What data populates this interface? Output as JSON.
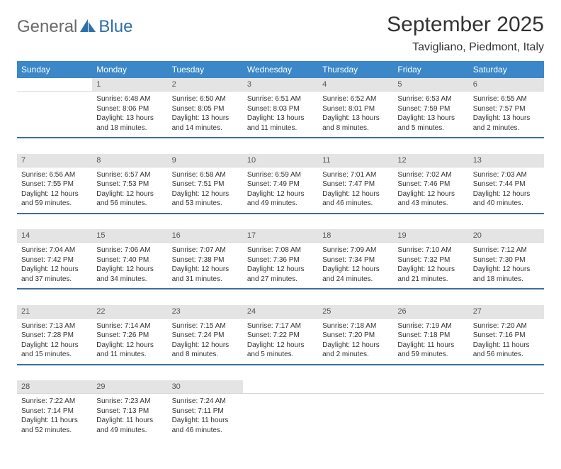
{
  "brand": {
    "part1": "General",
    "part2": "Blue"
  },
  "title": "September 2025",
  "location": "Tavigliano, Piedmont, Italy",
  "colors": {
    "header_bg": "#3b87c8",
    "header_text": "#ffffff",
    "daynum_bg": "#e4e4e4",
    "daynum_text": "#555555",
    "cell_text": "#333333",
    "divider": "#3b6fa0",
    "logo_gray": "#6a6a6a",
    "logo_blue": "#2f6fa8",
    "page_bg": "#ffffff"
  },
  "typography": {
    "title_size": 30,
    "location_size": 16,
    "th_size": 12,
    "daynum_size": 11,
    "cell_size": 10
  },
  "day_headers": [
    "Sunday",
    "Monday",
    "Tuesday",
    "Wednesday",
    "Thursday",
    "Friday",
    "Saturday"
  ],
  "weeks": [
    [
      null,
      {
        "n": "1",
        "sr": "Sunrise: 6:48 AM",
        "ss": "Sunset: 8:06 PM",
        "dl1": "Daylight: 13 hours",
        "dl2": "and 18 minutes."
      },
      {
        "n": "2",
        "sr": "Sunrise: 6:50 AM",
        "ss": "Sunset: 8:05 PM",
        "dl1": "Daylight: 13 hours",
        "dl2": "and 14 minutes."
      },
      {
        "n": "3",
        "sr": "Sunrise: 6:51 AM",
        "ss": "Sunset: 8:03 PM",
        "dl1": "Daylight: 13 hours",
        "dl2": "and 11 minutes."
      },
      {
        "n": "4",
        "sr": "Sunrise: 6:52 AM",
        "ss": "Sunset: 8:01 PM",
        "dl1": "Daylight: 13 hours",
        "dl2": "and 8 minutes."
      },
      {
        "n": "5",
        "sr": "Sunrise: 6:53 AM",
        "ss": "Sunset: 7:59 PM",
        "dl1": "Daylight: 13 hours",
        "dl2": "and 5 minutes."
      },
      {
        "n": "6",
        "sr": "Sunrise: 6:55 AM",
        "ss": "Sunset: 7:57 PM",
        "dl1": "Daylight: 13 hours",
        "dl2": "and 2 minutes."
      }
    ],
    [
      {
        "n": "7",
        "sr": "Sunrise: 6:56 AM",
        "ss": "Sunset: 7:55 PM",
        "dl1": "Daylight: 12 hours",
        "dl2": "and 59 minutes."
      },
      {
        "n": "8",
        "sr": "Sunrise: 6:57 AM",
        "ss": "Sunset: 7:53 PM",
        "dl1": "Daylight: 12 hours",
        "dl2": "and 56 minutes."
      },
      {
        "n": "9",
        "sr": "Sunrise: 6:58 AM",
        "ss": "Sunset: 7:51 PM",
        "dl1": "Daylight: 12 hours",
        "dl2": "and 53 minutes."
      },
      {
        "n": "10",
        "sr": "Sunrise: 6:59 AM",
        "ss": "Sunset: 7:49 PM",
        "dl1": "Daylight: 12 hours",
        "dl2": "and 49 minutes."
      },
      {
        "n": "11",
        "sr": "Sunrise: 7:01 AM",
        "ss": "Sunset: 7:47 PM",
        "dl1": "Daylight: 12 hours",
        "dl2": "and 46 minutes."
      },
      {
        "n": "12",
        "sr": "Sunrise: 7:02 AM",
        "ss": "Sunset: 7:46 PM",
        "dl1": "Daylight: 12 hours",
        "dl2": "and 43 minutes."
      },
      {
        "n": "13",
        "sr": "Sunrise: 7:03 AM",
        "ss": "Sunset: 7:44 PM",
        "dl1": "Daylight: 12 hours",
        "dl2": "and 40 minutes."
      }
    ],
    [
      {
        "n": "14",
        "sr": "Sunrise: 7:04 AM",
        "ss": "Sunset: 7:42 PM",
        "dl1": "Daylight: 12 hours",
        "dl2": "and 37 minutes."
      },
      {
        "n": "15",
        "sr": "Sunrise: 7:06 AM",
        "ss": "Sunset: 7:40 PM",
        "dl1": "Daylight: 12 hours",
        "dl2": "and 34 minutes."
      },
      {
        "n": "16",
        "sr": "Sunrise: 7:07 AM",
        "ss": "Sunset: 7:38 PM",
        "dl1": "Daylight: 12 hours",
        "dl2": "and 31 minutes."
      },
      {
        "n": "17",
        "sr": "Sunrise: 7:08 AM",
        "ss": "Sunset: 7:36 PM",
        "dl1": "Daylight: 12 hours",
        "dl2": "and 27 minutes."
      },
      {
        "n": "18",
        "sr": "Sunrise: 7:09 AM",
        "ss": "Sunset: 7:34 PM",
        "dl1": "Daylight: 12 hours",
        "dl2": "and 24 minutes."
      },
      {
        "n": "19",
        "sr": "Sunrise: 7:10 AM",
        "ss": "Sunset: 7:32 PM",
        "dl1": "Daylight: 12 hours",
        "dl2": "and 21 minutes."
      },
      {
        "n": "20",
        "sr": "Sunrise: 7:12 AM",
        "ss": "Sunset: 7:30 PM",
        "dl1": "Daylight: 12 hours",
        "dl2": "and 18 minutes."
      }
    ],
    [
      {
        "n": "21",
        "sr": "Sunrise: 7:13 AM",
        "ss": "Sunset: 7:28 PM",
        "dl1": "Daylight: 12 hours",
        "dl2": "and 15 minutes."
      },
      {
        "n": "22",
        "sr": "Sunrise: 7:14 AM",
        "ss": "Sunset: 7:26 PM",
        "dl1": "Daylight: 12 hours",
        "dl2": "and 11 minutes."
      },
      {
        "n": "23",
        "sr": "Sunrise: 7:15 AM",
        "ss": "Sunset: 7:24 PM",
        "dl1": "Daylight: 12 hours",
        "dl2": "and 8 minutes."
      },
      {
        "n": "24",
        "sr": "Sunrise: 7:17 AM",
        "ss": "Sunset: 7:22 PM",
        "dl1": "Daylight: 12 hours",
        "dl2": "and 5 minutes."
      },
      {
        "n": "25",
        "sr": "Sunrise: 7:18 AM",
        "ss": "Sunset: 7:20 PM",
        "dl1": "Daylight: 12 hours",
        "dl2": "and 2 minutes."
      },
      {
        "n": "26",
        "sr": "Sunrise: 7:19 AM",
        "ss": "Sunset: 7:18 PM",
        "dl1": "Daylight: 11 hours",
        "dl2": "and 59 minutes."
      },
      {
        "n": "27",
        "sr": "Sunrise: 7:20 AM",
        "ss": "Sunset: 7:16 PM",
        "dl1": "Daylight: 11 hours",
        "dl2": "and 56 minutes."
      }
    ],
    [
      {
        "n": "28",
        "sr": "Sunrise: 7:22 AM",
        "ss": "Sunset: 7:14 PM",
        "dl1": "Daylight: 11 hours",
        "dl2": "and 52 minutes."
      },
      {
        "n": "29",
        "sr": "Sunrise: 7:23 AM",
        "ss": "Sunset: 7:13 PM",
        "dl1": "Daylight: 11 hours",
        "dl2": "and 49 minutes."
      },
      {
        "n": "30",
        "sr": "Sunrise: 7:24 AM",
        "ss": "Sunset: 7:11 PM",
        "dl1": "Daylight: 11 hours",
        "dl2": "and 46 minutes."
      },
      null,
      null,
      null,
      null
    ]
  ]
}
